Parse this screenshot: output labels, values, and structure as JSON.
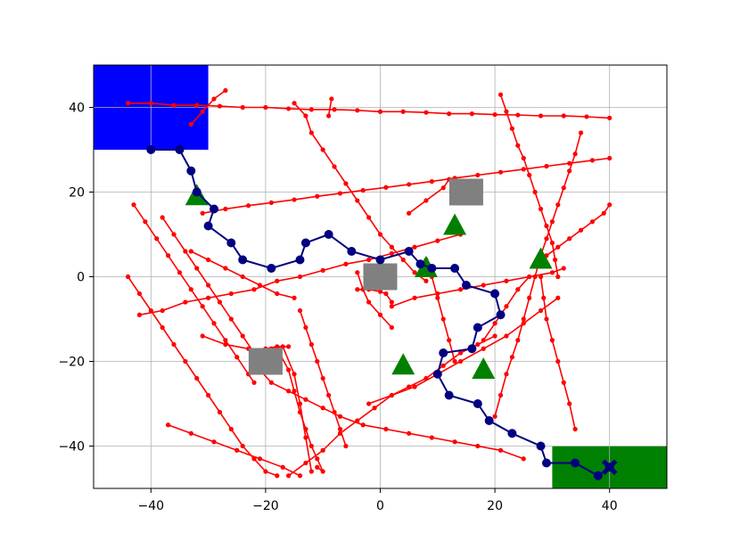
{
  "chart_data": {
    "type": "line",
    "title": "",
    "xlabel": "",
    "ylabel": "",
    "xlim": [
      -50,
      50
    ],
    "ylim": [
      -50,
      50
    ],
    "grid": true,
    "x_ticks": [
      -40,
      -20,
      0,
      20,
      40
    ],
    "y_ticks": [
      -40,
      -20,
      0,
      20,
      40
    ],
    "x_tick_labels": [
      "−40",
      "−20",
      "0",
      "20",
      "40"
    ],
    "y_tick_labels": [
      "−40",
      "−20",
      "0",
      "20",
      "40"
    ],
    "colors": {
      "start_region": "#0000ff",
      "goal_region": "#008000",
      "path": "#000080",
      "obstacle_trajectories": "#ff0000",
      "square_obstacles": "#808080",
      "triangle_obstacles": "#008000",
      "goal_marker": "#000080"
    },
    "regions": [
      {
        "name": "start",
        "x": [
          -50,
          -30
        ],
        "y": [
          30,
          50
        ],
        "color": "#0000ff"
      },
      {
        "name": "goal",
        "x": [
          30,
          50
        ],
        "y": [
          -50,
          -40
        ],
        "color": "#008000"
      }
    ],
    "square_obstacles": [
      [
        -20,
        -20
      ],
      [
        0,
        0
      ],
      [
        15,
        20
      ]
    ],
    "triangle_obstacles": [
      [
        -32,
        19
      ],
      [
        13,
        12
      ],
      [
        8,
        2
      ],
      [
        28,
        4
      ],
      [
        4,
        -21
      ],
      [
        18,
        -22
      ]
    ],
    "goal_marker": [
      40,
      -45
    ],
    "path": [
      [
        -40,
        30
      ],
      [
        -35,
        30
      ],
      [
        -33,
        25
      ],
      [
        -32,
        20
      ],
      [
        -29,
        16
      ],
      [
        -30,
        12
      ],
      [
        -26,
        8
      ],
      [
        -24,
        4
      ],
      [
        -19,
        2
      ],
      [
        -14,
        4
      ],
      [
        -13,
        8
      ],
      [
        -9,
        10
      ],
      [
        -5,
        6
      ],
      [
        0,
        4
      ],
      [
        5,
        6
      ],
      [
        7,
        3
      ],
      [
        9,
        2
      ],
      [
        13,
        2
      ],
      [
        15,
        -2
      ],
      [
        20,
        -4
      ],
      [
        21,
        -9
      ],
      [
        17,
        -12
      ],
      [
        16,
        -17
      ],
      [
        11,
        -18
      ],
      [
        10,
        -23
      ],
      [
        12,
        -28
      ],
      [
        17,
        -30
      ],
      [
        19,
        -34
      ],
      [
        23,
        -37
      ],
      [
        28,
        -40
      ],
      [
        29,
        -44
      ],
      [
        34,
        -44
      ],
      [
        38,
        -47
      ],
      [
        40,
        -45
      ]
    ],
    "obstacle_trajectories": [
      [
        [
          -44,
          41
        ],
        [
          -40,
          41
        ],
        [
          -36,
          40.5
        ],
        [
          -32,
          40.5
        ],
        [
          -28,
          40.3
        ],
        [
          -24,
          40
        ],
        [
          -20,
          40
        ],
        [
          -16,
          39.7
        ],
        [
          -12,
          39.5
        ],
        [
          -8,
          39.5
        ],
        [
          -4,
          39.3
        ],
        [
          0,
          39
        ],
        [
          4,
          39
        ],
        [
          8,
          38.8
        ],
        [
          12,
          38.5
        ],
        [
          16,
          38.5
        ],
        [
          20,
          38.3
        ],
        [
          24,
          38.2
        ],
        [
          28,
          38
        ],
        [
          32,
          38
        ],
        [
          36,
          37.8
        ],
        [
          40,
          37.5
        ]
      ],
      [
        [
          -33,
          36
        ],
        [
          -31,
          39
        ],
        [
          -29,
          42
        ],
        [
          -27,
          44
        ]
      ],
      [
        [
          -31,
          15
        ],
        [
          -27,
          16
        ],
        [
          -23,
          16.8
        ],
        [
          -19,
          17.5
        ],
        [
          -15,
          18.2
        ],
        [
          -11,
          19
        ],
        [
          -7,
          19.7
        ],
        [
          -3,
          20.4
        ],
        [
          1,
          21.1
        ],
        [
          5,
          21.8
        ],
        [
          9,
          22.5
        ],
        [
          13,
          23.3
        ],
        [
          17,
          24
        ],
        [
          21,
          24.7
        ],
        [
          25,
          25.4
        ],
        [
          29,
          26.1
        ],
        [
          33,
          26.8
        ],
        [
          37,
          27.5
        ],
        [
          40,
          28
        ]
      ],
      [
        [
          -15,
          41
        ],
        [
          -13,
          38
        ],
        [
          -12,
          34
        ],
        [
          -10,
          30
        ],
        [
          -8,
          26
        ],
        [
          -6,
          22
        ],
        [
          -4,
          18
        ],
        [
          -2,
          14
        ],
        [
          0,
          10
        ],
        [
          2,
          7
        ],
        [
          4,
          4
        ],
        [
          6,
          1
        ],
        [
          8,
          -1
        ]
      ],
      [
        [
          -8.5,
          42
        ],
        [
          -9,
          38
        ]
      ],
      [
        [
          -43,
          17
        ],
        [
          -41,
          13
        ],
        [
          -39,
          9
        ],
        [
          -37,
          5
        ],
        [
          -35,
          1
        ],
        [
          -33,
          -3
        ],
        [
          -31,
          -7
        ],
        [
          -29,
          -11
        ],
        [
          -27,
          -15
        ],
        [
          -25,
          -19
        ],
        [
          -23,
          -23
        ],
        [
          -22,
          -25
        ]
      ],
      [
        [
          -44,
          0
        ],
        [
          -42,
          -4
        ],
        [
          -40,
          -8
        ],
        [
          -38,
          -12
        ],
        [
          -36,
          -16
        ],
        [
          -34,
          -20
        ],
        [
          -32,
          -24
        ],
        [
          -30,
          -28
        ],
        [
          -28,
          -32
        ],
        [
          -26,
          -36
        ],
        [
          -24,
          -40
        ],
        [
          -22,
          -43
        ],
        [
          -20,
          -46
        ],
        [
          -18,
          -47
        ]
      ],
      [
        [
          -38,
          14
        ],
        [
          -36,
          10
        ],
        [
          -34,
          6
        ],
        [
          -32,
          2
        ],
        [
          -30,
          -2
        ],
        [
          -28,
          -6
        ],
        [
          -26,
          -10
        ],
        [
          -24,
          -14
        ],
        [
          -22,
          -18
        ],
        [
          -20,
          -17
        ],
        [
          -18,
          -16.5
        ],
        [
          -16,
          -16.5
        ]
      ],
      [
        [
          -33,
          6
        ],
        [
          -30,
          4
        ],
        [
          -27,
          2
        ],
        [
          -24,
          0
        ],
        [
          -21,
          -2
        ],
        [
          -18,
          -4
        ],
        [
          -15,
          -5
        ]
      ],
      [
        [
          -31,
          -14
        ],
        [
          -27,
          -16
        ],
        [
          -23,
          -17
        ],
        [
          -19,
          -17
        ],
        [
          -17,
          -16.5
        ],
        [
          -15,
          -23
        ],
        [
          -14,
          -30
        ],
        [
          -13,
          -38
        ],
        [
          -12,
          -46
        ]
      ],
      [
        [
          -14,
          -8
        ],
        [
          -13,
          -12
        ],
        [
          -12,
          -16
        ],
        [
          -11,
          -20
        ],
        [
          -10,
          -24
        ],
        [
          -9,
          -28
        ],
        [
          -8,
          -32
        ],
        [
          -7,
          -36
        ],
        [
          -6,
          -40
        ]
      ],
      [
        [
          -18,
          -17
        ],
        [
          -16,
          -22
        ],
        [
          -15,
          -27
        ],
        [
          -14,
          -32
        ],
        [
          -13,
          -36
        ],
        [
          -12,
          -40
        ],
        [
          -11,
          -43
        ],
        [
          -10,
          -46
        ],
        [
          -11,
          -45
        ]
      ],
      [
        [
          -22,
          -18
        ],
        [
          -21,
          -22
        ],
        [
          -19,
          -25
        ],
        [
          -16,
          -27
        ],
        [
          -13,
          -29
        ],
        [
          -10,
          -31
        ],
        [
          -7,
          -33
        ],
        [
          -3,
          -35
        ],
        [
          1,
          -36
        ],
        [
          5,
          -37
        ],
        [
          9,
          -38
        ],
        [
          13,
          -39
        ],
        [
          17,
          -40
        ],
        [
          21,
          -41
        ],
        [
          25,
          -43
        ]
      ],
      [
        [
          -37,
          -35
        ],
        [
          -33,
          -37
        ],
        [
          -29,
          -39
        ],
        [
          -25,
          -41
        ],
        [
          -21,
          -43
        ],
        [
          -17,
          -45
        ],
        [
          -14,
          -47
        ]
      ],
      [
        [
          -42,
          -9
        ],
        [
          -38,
          -8
        ],
        [
          -34,
          -6
        ],
        [
          -30,
          -5
        ],
        [
          -26,
          -4
        ],
        [
          -22,
          -3
        ],
        [
          -18,
          -1
        ],
        [
          -14,
          0
        ],
        [
          -10,
          1.5
        ],
        [
          -6,
          3
        ],
        [
          -2,
          4
        ],
        [
          2,
          5.5
        ],
        [
          6,
          7
        ],
        [
          10,
          8.5
        ],
        [
          14,
          10
        ]
      ],
      [
        [
          -16,
          -47
        ],
        [
          -13,
          -44
        ],
        [
          -10,
          -41
        ],
        [
          -7,
          -37
        ],
        [
          -4,
          -34
        ],
        [
          -1,
          -31
        ],
        [
          2,
          -28
        ],
        [
          5,
          -26
        ],
        [
          8,
          -24
        ],
        [
          11,
          -21
        ],
        [
          14,
          -18
        ],
        [
          17,
          -16
        ],
        [
          20,
          -14
        ]
      ],
      [
        [
          -2,
          -30
        ],
        [
          2,
          -28
        ],
        [
          6,
          -26
        ],
        [
          10,
          -23
        ],
        [
          14,
          -20
        ],
        [
          18,
          -17
        ],
        [
          22,
          -14
        ],
        [
          25,
          -11
        ],
        [
          28,
          -8
        ],
        [
          31,
          -5
        ]
      ],
      [
        [
          -4,
          1
        ],
        [
          -3,
          -3
        ],
        [
          -2,
          -6
        ],
        [
          0,
          -9
        ],
        [
          2,
          -12
        ]
      ],
      [
        [
          -4,
          -3
        ],
        [
          -2,
          -3
        ],
        [
          0,
          -3.5
        ],
        [
          1,
          -4
        ],
        [
          2,
          -6
        ]
      ],
      [
        [
          2,
          -7
        ],
        [
          6,
          -5
        ],
        [
          10,
          -4
        ],
        [
          14,
          -3
        ],
        [
          18,
          -2
        ],
        [
          22,
          -1
        ],
        [
          26,
          0
        ],
        [
          30,
          1
        ],
        [
          32,
          2
        ]
      ],
      [
        [
          5,
          15
        ],
        [
          8,
          18
        ],
        [
          11,
          21
        ],
        [
          12,
          23
        ]
      ],
      [
        [
          8,
          4
        ],
        [
          9,
          0
        ],
        [
          10,
          -5
        ],
        [
          11,
          -10
        ],
        [
          12,
          -15
        ],
        [
          13,
          -20
        ]
      ],
      [
        [
          21,
          43
        ],
        [
          22,
          39
        ],
        [
          23,
          35
        ],
        [
          24,
          31
        ],
        [
          25,
          28
        ],
        [
          26,
          24
        ],
        [
          27,
          20
        ],
        [
          28,
          16
        ],
        [
          29,
          12
        ],
        [
          30,
          8
        ],
        [
          30.5,
          4
        ],
        [
          31,
          0
        ]
      ],
      [
        [
          28,
          0
        ],
        [
          28.5,
          -5
        ],
        [
          29,
          -10
        ],
        [
          30,
          -15
        ],
        [
          31,
          -20
        ],
        [
          32,
          -25
        ],
        [
          33,
          -30
        ],
        [
          34,
          -36
        ]
      ],
      [
        [
          20,
          -33
        ],
        [
          21,
          -28
        ],
        [
          22,
          -23
        ],
        [
          23,
          -19
        ],
        [
          24,
          -15
        ],
        [
          25,
          -10
        ],
        [
          26,
          -5
        ],
        [
          27,
          0
        ],
        [
          28,
          5
        ],
        [
          29,
          9
        ],
        [
          30,
          13
        ],
        [
          31,
          17
        ],
        [
          32,
          21
        ],
        [
          33,
          25
        ],
        [
          34,
          29
        ],
        [
          35,
          34
        ]
      ],
      [
        [
          27,
          3
        ],
        [
          29,
          5
        ],
        [
          31,
          7
        ],
        [
          33,
          9
        ],
        [
          35,
          11
        ],
        [
          37,
          13
        ],
        [
          39,
          15
        ],
        [
          40,
          17
        ]
      ],
      [
        [
          26,
          0
        ],
        [
          24,
          -3
        ],
        [
          22,
          -7
        ],
        [
          20,
          -11
        ],
        [
          18,
          -15
        ]
      ]
    ]
  }
}
